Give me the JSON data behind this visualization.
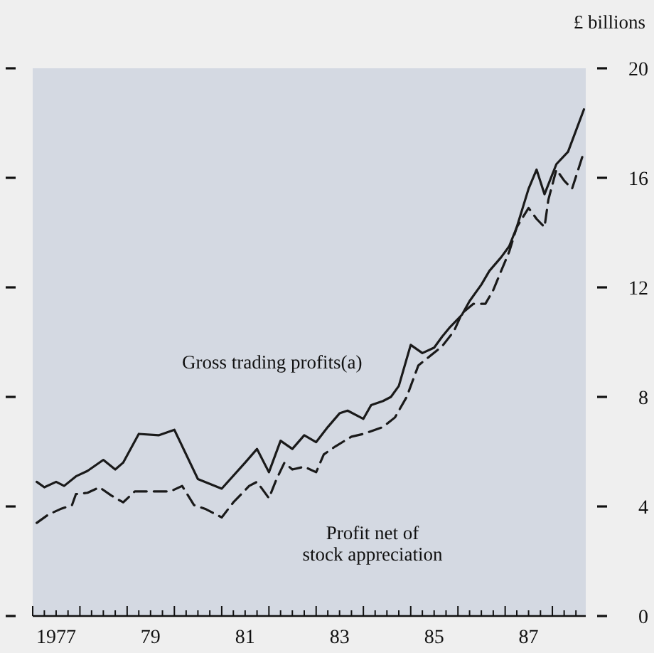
{
  "chart_data": {
    "type": "line",
    "ylabel": "£ billions",
    "xlim": [
      "1977-01",
      "1988-09-15"
    ],
    "ylim": [
      0,
      20
    ],
    "yticks": [
      0,
      4,
      8,
      12,
      16,
      20
    ],
    "xticks": [
      {
        "value": "1977-01",
        "label": null
      },
      {
        "value": "1977-04",
        "label": null
      },
      {
        "value": "1977-07",
        "label": "1977"
      },
      {
        "value": "1977-10",
        "label": null
      },
      {
        "value": "1978-01",
        "label": null
      },
      {
        "value": "1978-04",
        "label": null
      },
      {
        "value": "1978-07",
        "label": null
      },
      {
        "value": "1978-10",
        "label": null
      },
      {
        "value": "1979-01",
        "label": null
      },
      {
        "value": "1979-04",
        "label": null
      },
      {
        "value": "1979-07",
        "label": "79"
      },
      {
        "value": "1979-10",
        "label": null
      },
      {
        "value": "1980-01",
        "label": null
      },
      {
        "value": "1980-04",
        "label": null
      },
      {
        "value": "1980-07",
        "label": null
      },
      {
        "value": "1980-10",
        "label": null
      },
      {
        "value": "1981-01",
        "label": null
      },
      {
        "value": "1981-04",
        "label": null
      },
      {
        "value": "1981-07",
        "label": "81"
      },
      {
        "value": "1981-10",
        "label": null
      },
      {
        "value": "1982-01",
        "label": null
      },
      {
        "value": "1982-04",
        "label": null
      },
      {
        "value": "1982-07",
        "label": null
      },
      {
        "value": "1982-10",
        "label": null
      },
      {
        "value": "1983-01",
        "label": null
      },
      {
        "value": "1983-04",
        "label": null
      },
      {
        "value": "1983-07",
        "label": "83"
      },
      {
        "value": "1983-10",
        "label": null
      },
      {
        "value": "1984-01",
        "label": null
      },
      {
        "value": "1984-04",
        "label": null
      },
      {
        "value": "1984-07",
        "label": null
      },
      {
        "value": "1984-10",
        "label": null
      },
      {
        "value": "1985-01",
        "label": null
      },
      {
        "value": "1985-04",
        "label": null
      },
      {
        "value": "1985-07",
        "label": "85"
      },
      {
        "value": "1985-10",
        "label": null
      },
      {
        "value": "1986-01",
        "label": null
      },
      {
        "value": "1986-04",
        "label": null
      },
      {
        "value": "1986-07",
        "label": null
      },
      {
        "value": "1986-10",
        "label": null
      },
      {
        "value": "1987-01",
        "label": null
      },
      {
        "value": "1987-04",
        "label": null
      },
      {
        "value": "1987-07",
        "label": "87"
      },
      {
        "value": "1987-10",
        "label": null
      },
      {
        "value": "1988-01",
        "label": null
      },
      {
        "value": "1988-04",
        "label": null
      },
      {
        "value": "1988-07",
        "label": null
      }
    ],
    "grid": false,
    "series": [
      {
        "name": "Gross trading profits(a)",
        "color": "#1a1a1a",
        "line_style": "solid",
        "x": [
          "1977-02",
          "1977-04",
          "1977-07",
          "1977-09",
          "1977-12",
          "1978-03",
          "1978-07",
          "1978-10",
          "1978-12",
          "1979-04",
          "1979-09",
          "1980-01",
          "1980-07",
          "1981-01",
          "1981-07",
          "1981-10",
          "1982-01",
          "1982-04",
          "1982-07",
          "1982-10",
          "1983-01",
          "1983-04",
          "1983-07",
          "1983-09",
          "1984-01",
          "1984-03",
          "1984-06",
          "1984-08",
          "1984-10",
          "1985-01",
          "1985-04",
          "1985-07",
          "1985-09",
          "1985-11",
          "1986-02",
          "1986-04",
          "1986-07",
          "1986-09",
          "1986-12",
          "1987-02",
          "1987-04",
          "1987-07",
          "1987-09",
          "1987-11",
          "1988-02",
          "1988-05",
          "1988-09"
        ],
        "values": [
          4.9,
          4.7,
          4.9,
          4.75,
          5.1,
          5.3,
          5.7,
          5.35,
          5.6,
          6.65,
          6.6,
          6.8,
          5.0,
          4.65,
          5.6,
          6.1,
          5.25,
          6.4,
          6.1,
          6.6,
          6.35,
          6.9,
          7.4,
          7.5,
          7.2,
          7.7,
          7.85,
          8.0,
          8.4,
          9.9,
          9.6,
          9.8,
          10.2,
          10.55,
          11.0,
          11.5,
          12.1,
          12.6,
          13.1,
          13.5,
          14.2,
          15.6,
          16.3,
          15.4,
          16.5,
          16.95,
          18.5
        ]
      },
      {
        "name": "Profit net of\nstock appreciation",
        "color": "#1a1a1a",
        "line_style": "dashed",
        "x": [
          "1977-02",
          "1977-05",
          "1977-08",
          "1977-11",
          "1977-12",
          "1978-03",
          "1978-06",
          "1978-09",
          "1978-12",
          "1979-03",
          "1979-08",
          "1979-12",
          "1980-03",
          "1980-06",
          "1980-09",
          "1981-01",
          "1981-04",
          "1981-08",
          "1981-10",
          "1982-01",
          "1982-03",
          "1982-05",
          "1982-07",
          "1982-10",
          "1983-01",
          "1983-03",
          "1983-06",
          "1983-10",
          "1984-01",
          "1984-06",
          "1984-09",
          "1984-12",
          "1985-03",
          "1985-06",
          "1985-09",
          "1985-12",
          "1986-02",
          "1986-05",
          "1986-08",
          "1986-10",
          "1986-12",
          "1987-02",
          "1987-04",
          "1987-07",
          "1987-09",
          "1987-11",
          "1987-12",
          "1988-02",
          "1988-04",
          "1988-06",
          "1988-09"
        ],
        "values": [
          3.4,
          3.7,
          3.9,
          4.05,
          4.45,
          4.5,
          4.7,
          4.4,
          4.15,
          4.55,
          4.55,
          4.55,
          4.75,
          4.05,
          3.9,
          3.6,
          4.15,
          4.75,
          4.9,
          4.3,
          5.0,
          5.6,
          5.35,
          5.45,
          5.25,
          5.9,
          6.2,
          6.55,
          6.65,
          6.9,
          7.25,
          8.0,
          9.15,
          9.5,
          9.85,
          10.4,
          11.05,
          11.4,
          11.4,
          11.9,
          12.6,
          13.3,
          14.2,
          14.9,
          14.5,
          14.2,
          15.2,
          16.3,
          15.9,
          15.6,
          16.95
        ]
      }
    ]
  }
}
